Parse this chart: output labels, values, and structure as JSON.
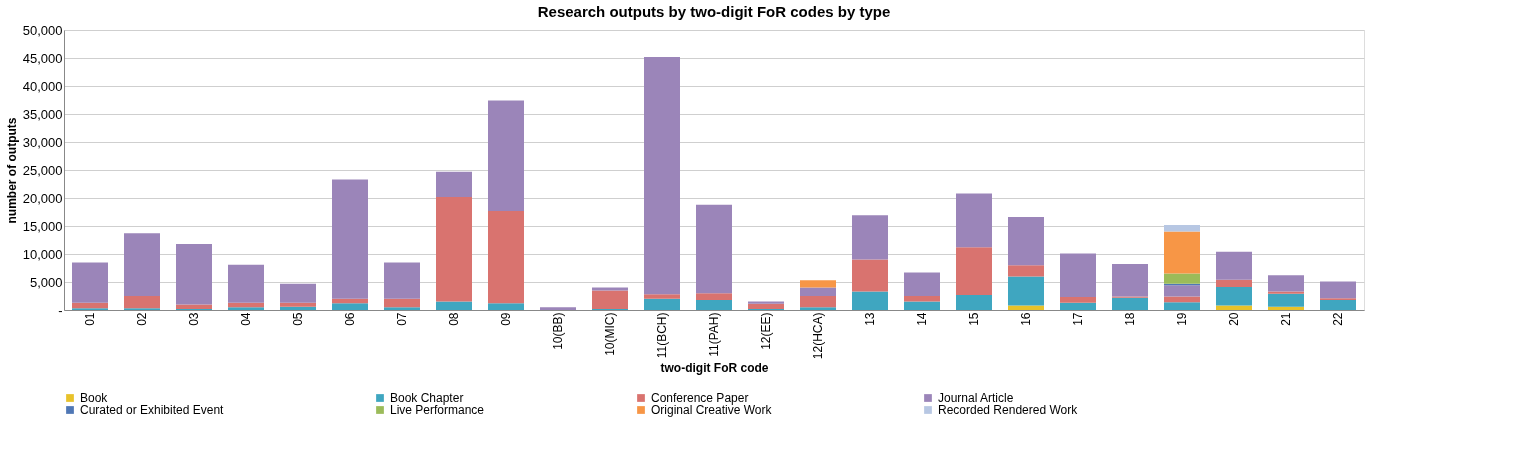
{
  "chart_data": {
    "type": "bar",
    "stacked": true,
    "title": "Research outputs by two-digit FoR codes by type",
    "xlabel": "two-digit FoR code",
    "ylabel": "number of outputs",
    "categories": [
      "01",
      "02",
      "03",
      "04",
      "05",
      "06",
      "07",
      "08",
      "09",
      "10(BB)",
      "10(MIC)",
      "11(BCH)",
      "11(PAH)",
      "12(EE)",
      "12(HCA)",
      "13",
      "14",
      "15",
      "16",
      "17",
      "18",
      "19",
      "20",
      "21",
      "22"
    ],
    "series": [
      {
        "name": "Book",
        "color": "#e8c22a",
        "values": [
          0,
          0,
          0,
          0,
          0,
          0,
          0,
          0,
          0,
          0,
          0,
          0,
          0,
          0,
          0,
          0,
          0,
          0,
          800,
          0,
          0,
          0,
          800,
          600,
          0
        ]
      },
      {
        "name": "Book Chapter",
        "color": "#3fa6c0",
        "values": [
          300,
          300,
          200,
          500,
          600,
          1200,
          500,
          1500,
          1200,
          0,
          200,
          2000,
          1800,
          200,
          500,
          3300,
          1500,
          2700,
          5200,
          1300,
          2200,
          1400,
          3300,
          2300,
          1800
        ]
      },
      {
        "name": "Conference Paper",
        "color": "#d9736f",
        "values": [
          1000,
          2200,
          800,
          800,
          700,
          800,
          1500,
          18700,
          16500,
          0,
          3300,
          800,
          1200,
          900,
          2000,
          5700,
          1000,
          8500,
          2000,
          1000,
          200,
          1000,
          1300,
          400,
          300
        ]
      },
      {
        "name": "Journal Article",
        "color": "#9b85b9",
        "values": [
          7200,
          11200,
          10800,
          6800,
          3400,
          21300,
          6500,
          4500,
          19700,
          500,
          500,
          42400,
          15800,
          400,
          1500,
          7900,
          4200,
          9600,
          8600,
          7800,
          5800,
          2000,
          5000,
          2900,
          3000
        ]
      },
      {
        "name": "Curated or Exhibited Event",
        "color": "#4f77b5",
        "values": [
          0,
          0,
          0,
          0,
          0,
          0,
          0,
          0,
          0,
          0,
          0,
          0,
          0,
          0,
          0,
          0,
          0,
          0,
          0,
          0,
          0,
          300,
          0,
          0,
          0
        ]
      },
      {
        "name": "Live Performance",
        "color": "#9bbb59",
        "values": [
          0,
          0,
          0,
          0,
          0,
          0,
          0,
          0,
          0,
          0,
          0,
          0,
          0,
          0,
          0,
          0,
          0,
          0,
          0,
          0,
          0,
          1800,
          0,
          0,
          0
        ]
      },
      {
        "name": "Original Creative Work",
        "color": "#f79646",
        "values": [
          0,
          0,
          0,
          0,
          0,
          0,
          0,
          0,
          0,
          0,
          0,
          0,
          0,
          0,
          1300,
          0,
          0,
          0,
          0,
          0,
          0,
          7500,
          0,
          0,
          0
        ]
      },
      {
        "name": "Recorded Rendered Work",
        "color": "#b7c7e3",
        "values": [
          0,
          0,
          0,
          0,
          0,
          0,
          0,
          0,
          0,
          0,
          0,
          0,
          0,
          0,
          0,
          0,
          0,
          0,
          0,
          0,
          0,
          1200,
          0,
          0,
          0
        ]
      }
    ],
    "ylim": [
      0,
      50000
    ],
    "yticks": [
      {
        "value": 0,
        "label": "-"
      },
      {
        "value": 5000,
        "label": "5,000"
      },
      {
        "value": 10000,
        "label": "10,000"
      },
      {
        "value": 15000,
        "label": "15,000"
      },
      {
        "value": 20000,
        "label": "20,000"
      },
      {
        "value": 25000,
        "label": "25,000"
      },
      {
        "value": 30000,
        "label": "30,000"
      },
      {
        "value": 35000,
        "label": "35,000"
      },
      {
        "value": 40000,
        "label": "40,000"
      },
      {
        "value": 45000,
        "label": "45,000"
      },
      {
        "value": 50000,
        "label": "50,000"
      }
    ],
    "grid": "y",
    "legend": "bottom"
  }
}
